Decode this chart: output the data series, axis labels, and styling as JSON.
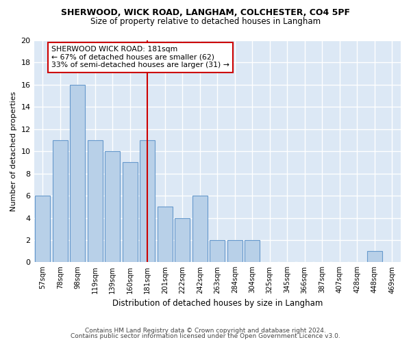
{
  "title1": "SHERWOOD, WICK ROAD, LANGHAM, COLCHESTER, CO4 5PF",
  "title2": "Size of property relative to detached houses in Langham",
  "xlabel": "Distribution of detached houses by size in Langham",
  "ylabel": "Number of detached properties",
  "categories": [
    "57sqm",
    "78sqm",
    "98sqm",
    "119sqm",
    "139sqm",
    "160sqm",
    "181sqm",
    "201sqm",
    "222sqm",
    "242sqm",
    "263sqm",
    "284sqm",
    "304sqm",
    "325sqm",
    "345sqm",
    "366sqm",
    "387sqm",
    "407sqm",
    "428sqm",
    "448sqm",
    "469sqm"
  ],
  "values": [
    6,
    11,
    16,
    11,
    10,
    9,
    11,
    5,
    4,
    6,
    2,
    2,
    2,
    0,
    0,
    0,
    0,
    0,
    0,
    1,
    0
  ],
  "bar_color": "#b8d0e8",
  "bar_edge_color": "#6699cc",
  "highlight_index": 6,
  "highlight_color": "#cc0000",
  "ylim": [
    0,
    20
  ],
  "yticks": [
    0,
    2,
    4,
    6,
    8,
    10,
    12,
    14,
    16,
    18,
    20
  ],
  "annotation_text": "SHERWOOD WICK ROAD: 181sqm\n← 67% of detached houses are smaller (62)\n33% of semi-detached houses are larger (31) →",
  "footer1": "Contains HM Land Registry data © Crown copyright and database right 2024.",
  "footer2": "Contains public sector information licensed under the Open Government Licence v3.0.",
  "fig_bg_color": "#ffffff",
  "plot_bg_color": "#dce8f5",
  "grid_color": "#ffffff",
  "annotation_box_color": "#ffffff",
  "annotation_border_color": "#cc0000",
  "title1_fontsize": 9,
  "title2_fontsize": 8.5
}
